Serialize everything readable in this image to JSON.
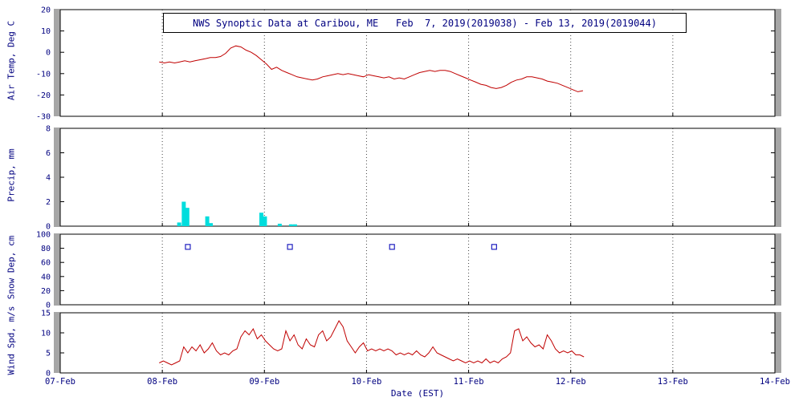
{
  "title": "NWS Synoptic Data at Caribou, ME   Feb  7, 2019(2019038) - Feb 13, 2019(2019044)",
  "colors": {
    "text": "#000080",
    "frame": "#000000",
    "grid": "#444444",
    "temp_line": "#c00000",
    "precip_bar": "#00dddd",
    "snow_marker": "#2020c0",
    "wind_line": "#c00000"
  },
  "chart_data": {
    "type": "line",
    "title": "NWS Synoptic Data at Caribou, ME   Feb  7, 2019(2019038) - Feb 13, 2019(2019044)",
    "x_axis": {
      "label": "Date (EST)",
      "tick_labels": [
        "07-Feb",
        "08-Feb",
        "09-Feb",
        "10-Feb",
        "11-Feb",
        "12-Feb",
        "13-Feb",
        "14-Feb"
      ],
      "range_days": [
        0,
        7
      ],
      "grid": "dotted-vertical-daily"
    },
    "panels": [
      {
        "id": "air-temp",
        "ylabel": "Air Temp, Deg C",
        "ylim": [
          -30,
          20
        ],
        "yticks": [
          -30,
          -20,
          -10,
          0,
          10,
          20
        ],
        "type": "line",
        "color": "#c00000",
        "x_start": 0.97,
        "x_step": 0.05,
        "values": [
          -4.5,
          -5,
          -4.5,
          -5,
          -4.5,
          -4,
          -4.5,
          -4,
          -3.5,
          -3,
          -2.5,
          -2.5,
          -2,
          -0.5,
          2,
          3,
          2.5,
          1,
          0,
          -1.5,
          -3.5,
          -5.5,
          -8,
          -7,
          -8.5,
          -9.5,
          -10.5,
          -11.5,
          -12,
          -12.5,
          -13,
          -12.5,
          -11.5,
          -11,
          -10.5,
          -10,
          -10.5,
          -10,
          -10.5,
          -11,
          -11.5,
          -10.5,
          -11,
          -11.5,
          -12,
          -11.5,
          -12.5,
          -12,
          -12.5,
          -11.5,
          -10.5,
          -9.5,
          -9,
          -8.5,
          -9,
          -8.5,
          -8.5,
          -9,
          -10,
          -11,
          -12,
          -13,
          -14,
          -15,
          -15.5,
          -16.5,
          -17,
          -16.5,
          -15.5,
          -14,
          -13,
          -12.5,
          -11.5,
          -11.5,
          -12,
          -12.5,
          -13.5,
          -14,
          -14.5,
          -15.5,
          -16.5,
          -17.5,
          -18.5,
          -18
        ]
      },
      {
        "id": "precip",
        "ylabel": "Precip, mm",
        "ylim": [
          0,
          8
        ],
        "yticks": [
          0,
          2,
          4,
          6,
          8
        ],
        "type": "bar",
        "color": "#00dddd",
        "bars": [
          {
            "x": 1.165,
            "v": 0.3
          },
          {
            "x": 1.21,
            "v": 2.0
          },
          {
            "x": 1.245,
            "v": 1.5
          },
          {
            "x": 1.44,
            "v": 0.8
          },
          {
            "x": 1.475,
            "v": 0.25
          },
          {
            "x": 1.97,
            "v": 1.1
          },
          {
            "x": 2.005,
            "v": 0.8
          },
          {
            "x": 2.15,
            "v": 0.2
          },
          {
            "x": 2.26,
            "v": 0.15
          },
          {
            "x": 2.3,
            "v": 0.15
          }
        ]
      },
      {
        "id": "snow-depth",
        "ylabel": "Snow Dep, cm",
        "ylim": [
          0,
          100
        ],
        "yticks": [
          0,
          20,
          40,
          60,
          80,
          100
        ],
        "type": "scatter",
        "color": "#2020c0",
        "points": [
          {
            "x": 1.25,
            "v": 82
          },
          {
            "x": 2.25,
            "v": 82
          },
          {
            "x": 3.25,
            "v": 82
          },
          {
            "x": 4.25,
            "v": 82
          }
        ]
      },
      {
        "id": "wind-speed",
        "ylabel": "Wind Spd, m/s",
        "ylim": [
          0,
          15
        ],
        "yticks": [
          0,
          5,
          10,
          15
        ],
        "type": "line",
        "color": "#c00000",
        "x_start": 0.97,
        "x_step": 0.04,
        "values": [
          2.5,
          3,
          2.5,
          2,
          2.5,
          3,
          6.5,
          5,
          6.5,
          5.5,
          7,
          5,
          6,
          7.5,
          5.5,
          4.5,
          5,
          4.5,
          5.5,
          6,
          9,
          10.5,
          9.5,
          11,
          8.5,
          9.5,
          8,
          7,
          6,
          5.5,
          6,
          10.5,
          8,
          9.5,
          7,
          6,
          8.5,
          7,
          6.5,
          9.5,
          10.5,
          8,
          9,
          11,
          13,
          11.5,
          8,
          6.5,
          5,
          6.5,
          7.5,
          5.5,
          6,
          5.5,
          6,
          5.5,
          6,
          5.5,
          4.5,
          5,
          4.5,
          5,
          4.5,
          5.5,
          4.5,
          4,
          5,
          6.5,
          5,
          4.5,
          4,
          3.5,
          3,
          3.5,
          3,
          2.5,
          3,
          2.5,
          3,
          2.5,
          3.5,
          2.5,
          3,
          2.5,
          3.5,
          4,
          5,
          10.5,
          11,
          8,
          9,
          7.5,
          6.5,
          7,
          6,
          9.5,
          8,
          6,
          5,
          5.5,
          5,
          5.5,
          4.5,
          4.5,
          4
        ]
      }
    ]
  }
}
